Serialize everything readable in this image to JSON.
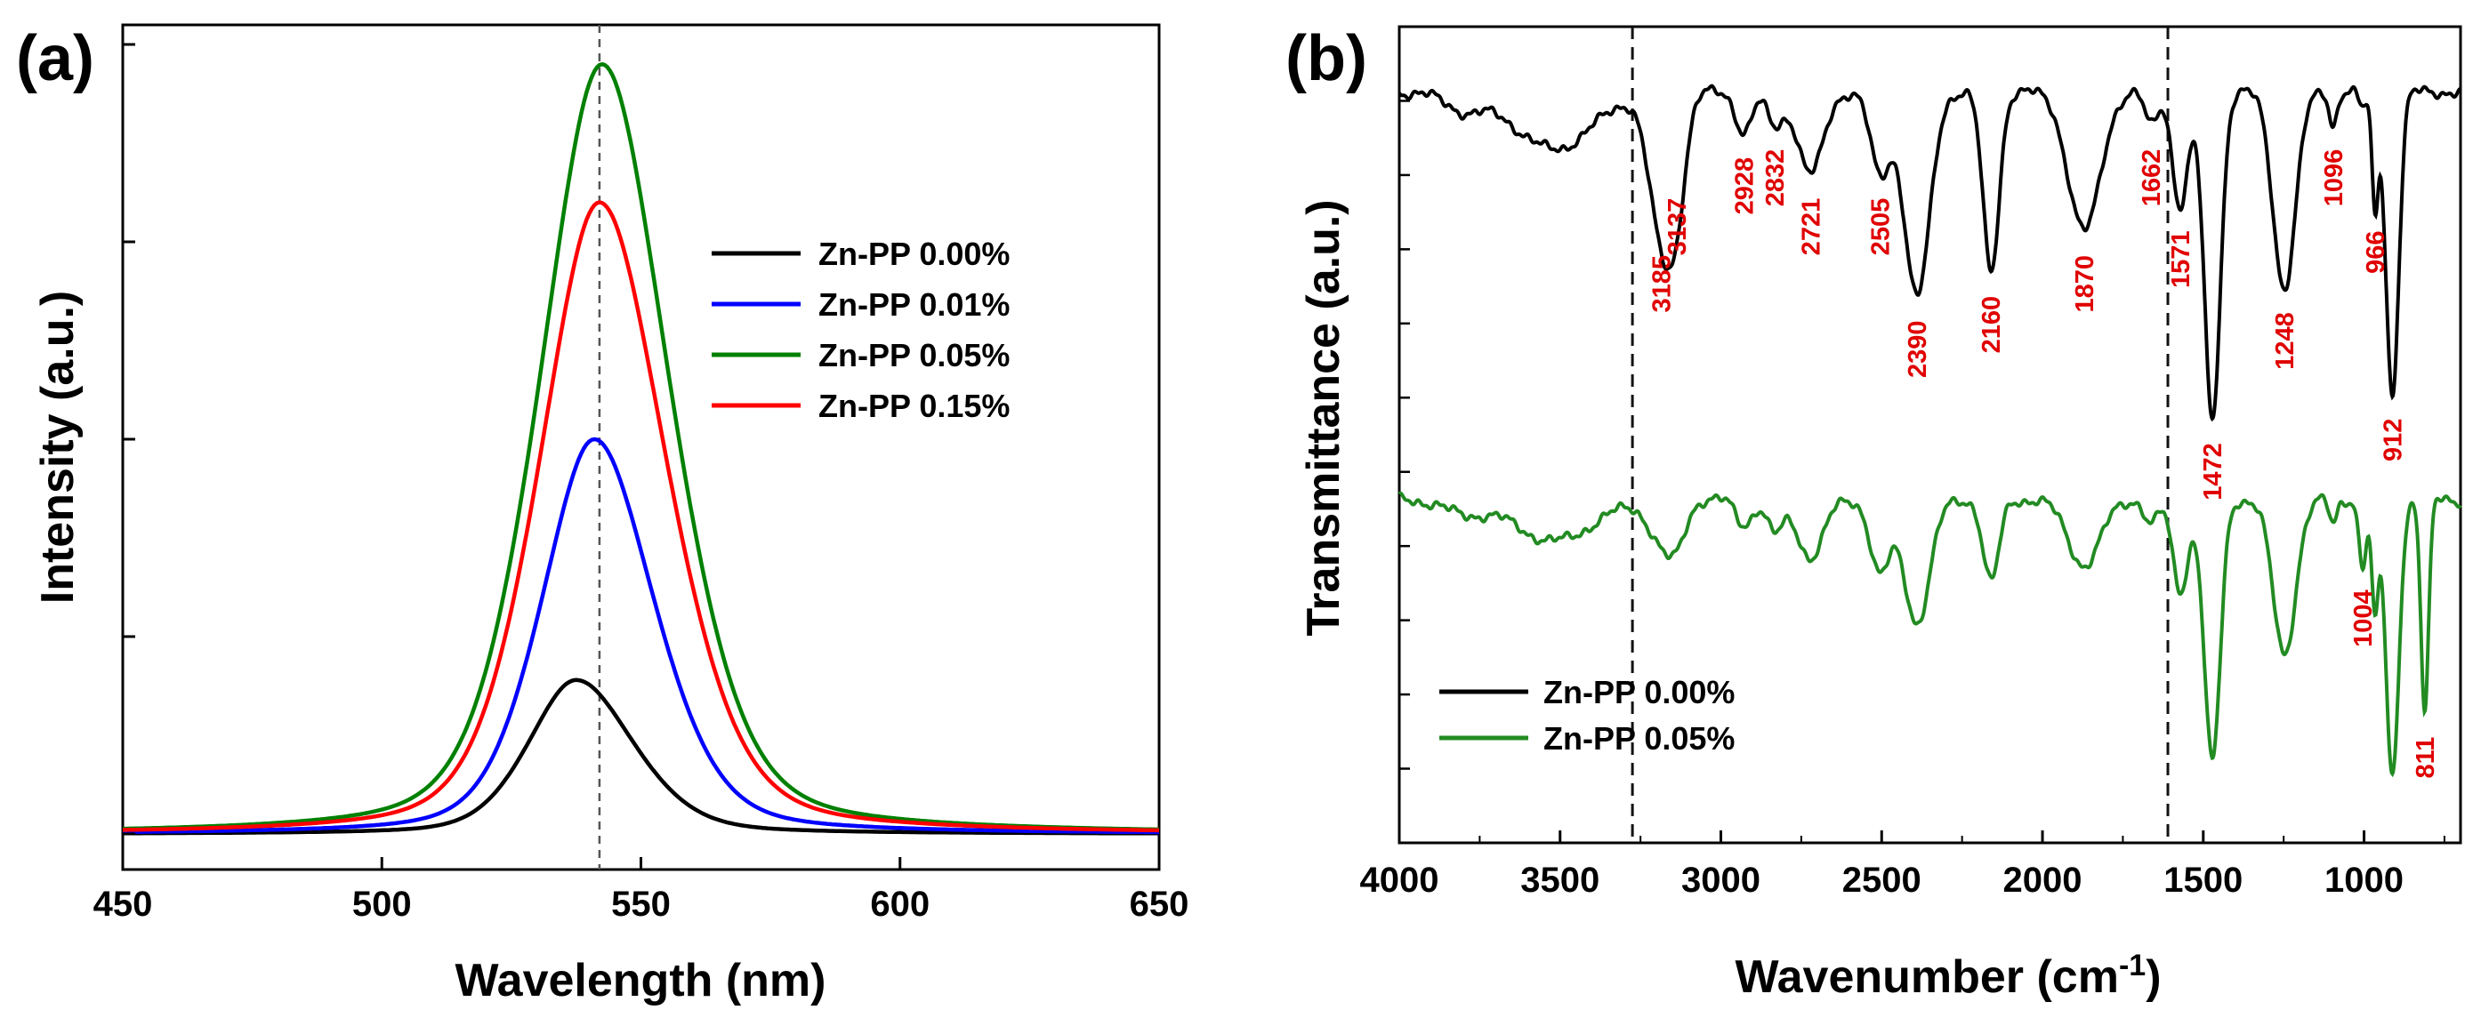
{
  "chart_data": [
    {
      "panel": "(a)",
      "type": "line",
      "xlabel": "Wavelength (nm)",
      "ylabel": "Intensity (a.u.)",
      "xlim": [
        450,
        650
      ],
      "ylim": [
        0,
        100
      ],
      "x_ticks": [
        450,
        500,
        550,
        600,
        650
      ],
      "y_ticks_labeled": false,
      "reference_line_x": 542,
      "legend_position": "right",
      "series": [
        {
          "name": "Zn-PP 0.00%",
          "color": "#000000",
          "peak_x": 537.5,
          "peak_y": 19.5,
          "sigma_left": 10,
          "sigma_right": 12
        },
        {
          "name": "Zn-PP 0.01%",
          "color": "#0000ff",
          "peak_x": 541,
          "peak_y": 50,
          "sigma_left": 11,
          "sigma_right": 12.5
        },
        {
          "name": "Zn-PP 0.05%",
          "color": "#008000",
          "peak_x": 542.5,
          "peak_y": 97.5,
          "sigma_left": 13,
          "sigma_right": 14
        },
        {
          "name": "Zn-PP 0.15%",
          "color": "#ff0000",
          "peak_x": 542,
          "peak_y": 80,
          "sigma_left": 12.5,
          "sigma_right": 14
        }
      ]
    },
    {
      "panel": "(b)",
      "type": "line",
      "xlabel_main": "Wavenumber (cm",
      "xlabel_sup": "-1",
      "xlabel_end": ")",
      "ylabel": "Transmittance (a.u.)",
      "xlim": [
        4000,
        700
      ],
      "x_ticks": [
        4000,
        3500,
        3000,
        2500,
        2000,
        1500,
        1000
      ],
      "y_ticks_labeled": false,
      "reference_lines_x": [
        3275,
        1610
      ],
      "legend_position": "bottom-left",
      "series": [
        {
          "name": "Zn-PP 0.00%",
          "color": "#000000",
          "baseline": 92,
          "noise": 0.6
        },
        {
          "name": "Zn-PP 0.05%",
          "color": "#228B22",
          "baseline": 42,
          "noise": 0.6
        }
      ],
      "bands": [
        {
          "x": 3800,
          "w": 60,
          "top": 2,
          "bottom": 1.5
        },
        {
          "x": 3520,
          "w": 120,
          "top": 7,
          "bottom": 5
        },
        {
          "x": 3185,
          "w": 40,
          "top": 17,
          "bottom": 5
        },
        {
          "x": 3137,
          "w": 30,
          "top": 10,
          "bottom": 4
        },
        {
          "x": 2928,
          "w": 25,
          "top": 5,
          "bottom": 3
        },
        {
          "x": 2832,
          "w": 25,
          "top": 4,
          "bottom": 4
        },
        {
          "x": 2721,
          "w": 40,
          "top": 10,
          "bottom": 7
        },
        {
          "x": 2505,
          "w": 30,
          "top": 10,
          "bottom": 9
        },
        {
          "x": 2390,
          "w": 40,
          "top": 25,
          "bottom": 15
        },
        {
          "x": 2160,
          "w": 25,
          "top": 22,
          "bottom": 10
        },
        {
          "x": 1870,
          "w": 50,
          "top": 17,
          "bottom": 8
        },
        {
          "x": 1662,
          "w": 20,
          "top": 4,
          "bottom": 3
        },
        {
          "x": 1571,
          "w": 25,
          "top": 14,
          "bottom": 11
        },
        {
          "x": 1472,
          "w": 25,
          "top": 40,
          "bottom": 32
        },
        {
          "x": 1248,
          "w": 35,
          "top": 24,
          "bottom": 19
        },
        {
          "x": 1096,
          "w": 12,
          "top": 4,
          "bottom": 3
        },
        {
          "x": 1004,
          "w": 12,
          "top": 2,
          "bottom": 8
        },
        {
          "x": 966,
          "w": 10,
          "top": 14,
          "bottom": 14
        },
        {
          "x": 912,
          "w": 20,
          "top": 37,
          "bottom": 34
        },
        {
          "x": 811,
          "w": 12,
          "top": 0,
          "bottom": 26
        }
      ],
      "peak_labels": [
        "3185",
        "3137",
        "2928",
        "2832",
        "2721",
        "2505",
        "2390",
        "2160",
        "1870",
        "1662",
        "1571",
        "1472",
        "1248",
        "1096",
        "966",
        "912",
        "1004",
        "811"
      ],
      "peak_label_positions": [
        3185,
        3137,
        2928,
        2832,
        2721,
        2505,
        2390,
        2160,
        1870,
        1662,
        1571,
        1472,
        1248,
        1096,
        966,
        912,
        1004,
        811
      ]
    }
  ]
}
